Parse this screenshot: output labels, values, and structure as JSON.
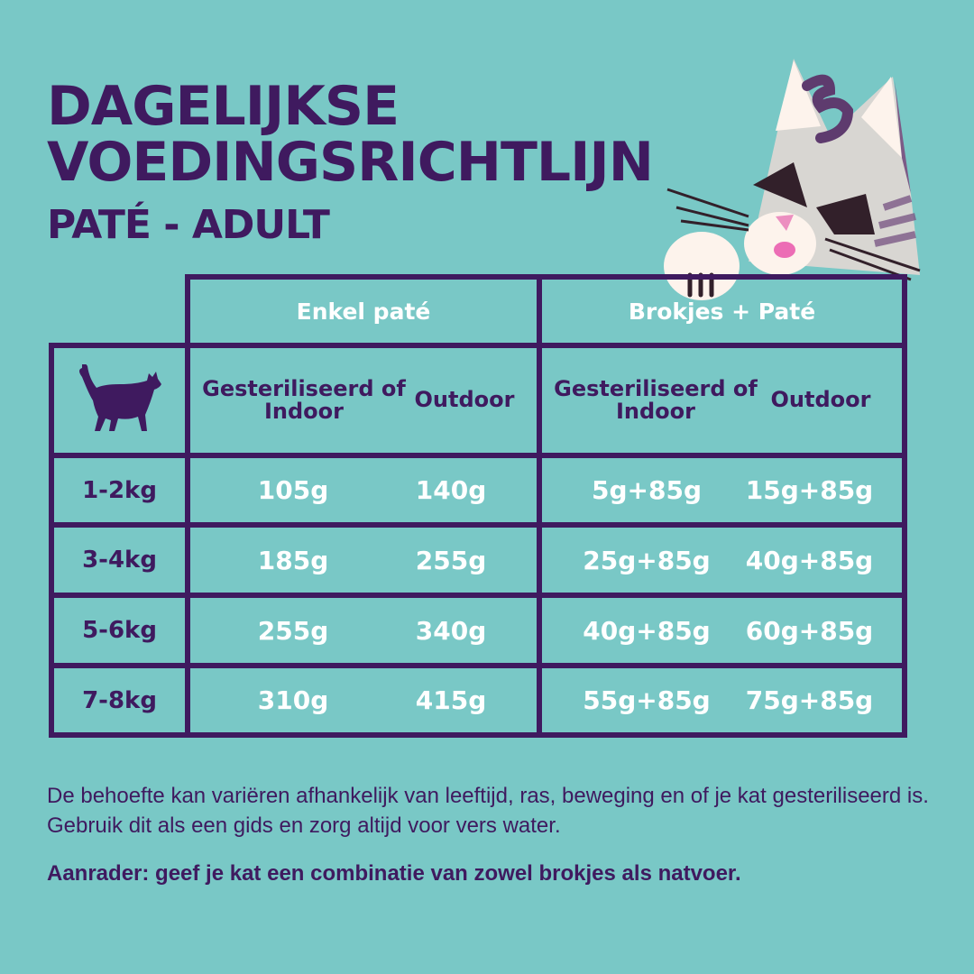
{
  "title": {
    "line1": "DAGELIJKSE",
    "line2": "VOEDINGSRICHTLIJN",
    "line3": "PATÉ - ADULT"
  },
  "table": {
    "groups": [
      "Enkel paté",
      "Brokjes + Paté"
    ],
    "subheaders": [
      "Gesteriliseerd of Indoor",
      "Outdoor",
      "Gesteriliseerd of Indoor",
      "Outdoor"
    ],
    "header_icon": "cat-silhouette-icon",
    "rows": [
      {
        "weight": "1-2kg",
        "values": [
          "105g",
          "140g",
          "5g+85g",
          "15g+85g"
        ]
      },
      {
        "weight": "3-4kg",
        "values": [
          "185g",
          "255g",
          "25g+85g",
          "40g+85g"
        ]
      },
      {
        "weight": "5-6kg",
        "values": [
          "255g",
          "340g",
          "40g+85g",
          "60g+85g"
        ]
      },
      {
        "weight": "7-8kg",
        "values": [
          "310g",
          "415g",
          "55g+85g",
          "75g+85g"
        ]
      }
    ]
  },
  "notes": {
    "text": "De behoefte kan variëren afhankelijk van leeftijd, ras, beweging en of je kat gesteriliseerd is. Gebruik dit als een gids en zorg altijd voor vers water.",
    "tip": "Aanrader: geef je kat een combinatie van zowel brokjes als natvoer."
  },
  "colors": {
    "background": "#79c8c6",
    "purple": "#3f1a5f",
    "white": "#ffffff"
  },
  "illustration": "cat-mascot-peeking"
}
